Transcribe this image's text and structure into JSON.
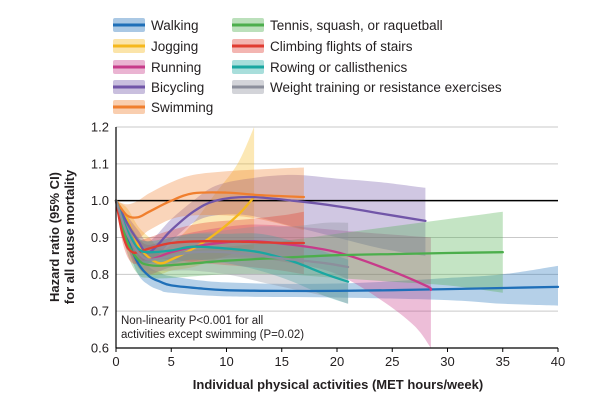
{
  "chart_data": {
    "type": "line",
    "xlabel": "Individual physical activities (MET hours/week)",
    "ylabel_lines": [
      "Hazard ratio (95% CI)",
      "for all cause mortality"
    ],
    "xlim": [
      0,
      40
    ],
    "ylim": [
      0.6,
      1.2
    ],
    "x_ticks": [
      0,
      5,
      10,
      15,
      20,
      25,
      30,
      35,
      40
    ],
    "y_ticks": [
      0.6,
      0.7,
      0.8,
      0.9,
      1.0,
      1.1,
      1.2
    ],
    "x_tick_labels": [
      "0",
      "5",
      "10",
      "15",
      "20",
      "25",
      "30",
      "35",
      "40"
    ],
    "y_tick_labels": [
      "0.6",
      "0.7",
      "0.8",
      "0.9",
      "1.0",
      "1.1",
      "1.2"
    ],
    "reference_line": 1.0,
    "grid": "horizontal",
    "legend_position": "top",
    "note_lines": [
      "Non-linearity P<0.001 for all",
      "activities except swimming (P=0.02)"
    ],
    "series": [
      {
        "name": "Walking",
        "color": "#1f6fb8",
        "points": [
          [
            0,
            1.0
          ],
          [
            1,
            0.9
          ],
          [
            2,
            0.83
          ],
          [
            3,
            0.795
          ],
          [
            4,
            0.78
          ],
          [
            5,
            0.77
          ],
          [
            7.5,
            0.762
          ],
          [
            10,
            0.757
          ],
          [
            15,
            0.755
          ],
          [
            20,
            0.755
          ],
          [
            25,
            0.757
          ],
          [
            30,
            0.76
          ],
          [
            35,
            0.763
          ],
          [
            40,
            0.766
          ]
        ],
        "ci_lower": [
          [
            0,
            1.0
          ],
          [
            1,
            0.88
          ],
          [
            2,
            0.8
          ],
          [
            3,
            0.77
          ],
          [
            4,
            0.757
          ],
          [
            5,
            0.75
          ],
          [
            10,
            0.74
          ],
          [
            20,
            0.737
          ],
          [
            30,
            0.73
          ],
          [
            35,
            0.72
          ],
          [
            40,
            0.715
          ]
        ],
        "ci_upper": [
          [
            0,
            1.0
          ],
          [
            1,
            0.92
          ],
          [
            2,
            0.86
          ],
          [
            3,
            0.82
          ],
          [
            4,
            0.805
          ],
          [
            5,
            0.795
          ],
          [
            10,
            0.778
          ],
          [
            20,
            0.775
          ],
          [
            30,
            0.79
          ],
          [
            35,
            0.8
          ],
          [
            40,
            0.823
          ]
        ]
      },
      {
        "name": "Jogging",
        "color": "#f5b81d",
        "points": [
          [
            0,
            1.0
          ],
          [
            1,
            0.95
          ],
          [
            2,
            0.88
          ],
          [
            3,
            0.845
          ],
          [
            4,
            0.83
          ],
          [
            5,
            0.84
          ],
          [
            7,
            0.87
          ],
          [
            9,
            0.91
          ],
          [
            11,
            0.96
          ],
          [
            12.5,
            1.01
          ]
        ],
        "ci_lower": [
          [
            0,
            1.0
          ],
          [
            1,
            0.9
          ],
          [
            2,
            0.82
          ],
          [
            3,
            0.8
          ],
          [
            4,
            0.8
          ],
          [
            5,
            0.81
          ],
          [
            7,
            0.82
          ],
          [
            9,
            0.84
          ],
          [
            11,
            0.86
          ],
          [
            12.5,
            0.87
          ]
        ],
        "ci_upper": [
          [
            0,
            1.0
          ],
          [
            1,
            0.98
          ],
          [
            2,
            0.93
          ],
          [
            3,
            0.9
          ],
          [
            4,
            0.87
          ],
          [
            5,
            0.88
          ],
          [
            7,
            0.94
          ],
          [
            9,
            1.02
          ],
          [
            11,
            1.1
          ],
          [
            12.5,
            1.2
          ]
        ]
      },
      {
        "name": "Running",
        "color": "#c73b8a",
        "points": [
          [
            0,
            1.0
          ],
          [
            1,
            0.92
          ],
          [
            2,
            0.86
          ],
          [
            3,
            0.84
          ],
          [
            5,
            0.86
          ],
          [
            8,
            0.88
          ],
          [
            12,
            0.89
          ],
          [
            16,
            0.88
          ],
          [
            20,
            0.86
          ],
          [
            24,
            0.82
          ],
          [
            28,
            0.77
          ],
          [
            28.5,
            0.758
          ]
        ],
        "ci_lower": [
          [
            0,
            1.0
          ],
          [
            1,
            0.88
          ],
          [
            2,
            0.82
          ],
          [
            3,
            0.8
          ],
          [
            5,
            0.82
          ],
          [
            8,
            0.84
          ],
          [
            12,
            0.845
          ],
          [
            16,
            0.83
          ],
          [
            20,
            0.8
          ],
          [
            24,
            0.73
          ],
          [
            27,
            0.66
          ],
          [
            28.5,
            0.6
          ]
        ],
        "ci_upper": [
          [
            0,
            1.0
          ],
          [
            1,
            0.95
          ],
          [
            2,
            0.9
          ],
          [
            3,
            0.88
          ],
          [
            5,
            0.9
          ],
          [
            8,
            0.92
          ],
          [
            12,
            0.935
          ],
          [
            16,
            0.93
          ],
          [
            20,
            0.92
          ],
          [
            24,
            0.91
          ],
          [
            28.5,
            0.9
          ]
        ]
      },
      {
        "name": "Bicycling",
        "color": "#7156a8",
        "points": [
          [
            0,
            1.0
          ],
          [
            1,
            0.94
          ],
          [
            2,
            0.89
          ],
          [
            3,
            0.86
          ],
          [
            5,
            0.92
          ],
          [
            7,
            0.97
          ],
          [
            9,
            1.0
          ],
          [
            12,
            1.01
          ],
          [
            16,
            1.0
          ],
          [
            20,
            0.985
          ],
          [
            24,
            0.965
          ],
          [
            28,
            0.945
          ]
        ],
        "ci_lower": [
          [
            0,
            1.0
          ],
          [
            1,
            0.92
          ],
          [
            2,
            0.86
          ],
          [
            3,
            0.83
          ],
          [
            5,
            0.89
          ],
          [
            7,
            0.94
          ],
          [
            9,
            0.96
          ],
          [
            12,
            0.96
          ],
          [
            16,
            0.93
          ],
          [
            20,
            0.9
          ],
          [
            24,
            0.87
          ],
          [
            28,
            0.85
          ]
        ],
        "ci_upper": [
          [
            0,
            1.0
          ],
          [
            1,
            0.96
          ],
          [
            2,
            0.92
          ],
          [
            3,
            0.89
          ],
          [
            5,
            0.95
          ],
          [
            7,
            1.0
          ],
          [
            9,
            1.04
          ],
          [
            12,
            1.06
          ],
          [
            16,
            1.07
          ],
          [
            20,
            1.06
          ],
          [
            24,
            1.05
          ],
          [
            28,
            1.035
          ]
        ]
      },
      {
        "name": "Swimming",
        "color": "#f07f2e",
        "points": [
          [
            0,
            1.0
          ],
          [
            1,
            0.96
          ],
          [
            2,
            0.955
          ],
          [
            3,
            0.97
          ],
          [
            5,
            1.0
          ],
          [
            7,
            1.02
          ],
          [
            10,
            1.022
          ],
          [
            13,
            1.015
          ],
          [
            17,
            1.01
          ]
        ],
        "ci_lower": [
          [
            0,
            1.0
          ],
          [
            1,
            0.93
          ],
          [
            2,
            0.9
          ],
          [
            3,
            0.92
          ],
          [
            5,
            0.95
          ],
          [
            7,
            0.96
          ],
          [
            10,
            0.96
          ],
          [
            13,
            0.95
          ],
          [
            17,
            0.92
          ]
        ],
        "ci_upper": [
          [
            0,
            1.0
          ],
          [
            1,
            0.99
          ],
          [
            2,
            1.0
          ],
          [
            3,
            1.02
          ],
          [
            5,
            1.05
          ],
          [
            7,
            1.07
          ],
          [
            10,
            1.08
          ],
          [
            13,
            1.085
          ],
          [
            17,
            1.09
          ]
        ]
      },
      {
        "name": "Tennis, squash, or raquetball",
        "color": "#4cae4c",
        "points": [
          [
            0,
            1.0
          ],
          [
            1,
            0.89
          ],
          [
            2,
            0.84
          ],
          [
            3,
            0.825
          ],
          [
            5,
            0.825
          ],
          [
            10,
            0.837
          ],
          [
            15,
            0.845
          ],
          [
            20,
            0.852
          ],
          [
            25,
            0.855
          ],
          [
            30,
            0.858
          ],
          [
            35,
            0.86
          ]
        ],
        "ci_lower": [
          [
            0,
            1.0
          ],
          [
            1,
            0.86
          ],
          [
            2,
            0.8
          ],
          [
            3,
            0.79
          ],
          [
            5,
            0.79
          ],
          [
            10,
            0.8
          ],
          [
            15,
            0.8
          ],
          [
            20,
            0.79
          ],
          [
            25,
            0.78
          ],
          [
            30,
            0.77
          ],
          [
            35,
            0.75
          ]
        ],
        "ci_upper": [
          [
            0,
            1.0
          ],
          [
            1,
            0.93
          ],
          [
            2,
            0.88
          ],
          [
            3,
            0.86
          ],
          [
            5,
            0.86
          ],
          [
            10,
            0.875
          ],
          [
            15,
            0.89
          ],
          [
            20,
            0.91
          ],
          [
            25,
            0.93
          ],
          [
            30,
            0.95
          ],
          [
            35,
            0.97
          ]
        ]
      },
      {
        "name": "Climbing flights of stairs",
        "color": "#e03c31",
        "points": [
          [
            0,
            1.0
          ],
          [
            0.5,
            0.92
          ],
          [
            1,
            0.875
          ],
          [
            1.5,
            0.86
          ],
          [
            2,
            0.86
          ],
          [
            3,
            0.87
          ],
          [
            5,
            0.885
          ],
          [
            8,
            0.89
          ],
          [
            12,
            0.888
          ],
          [
            15,
            0.885
          ],
          [
            17,
            0.885
          ]
        ],
        "ci_lower": [
          [
            0,
            1.0
          ],
          [
            0.5,
            0.9
          ],
          [
            1,
            0.85
          ],
          [
            1.5,
            0.83
          ],
          [
            2,
            0.83
          ],
          [
            3,
            0.84
          ],
          [
            5,
            0.84
          ],
          [
            8,
            0.83
          ],
          [
            12,
            0.82
          ],
          [
            15,
            0.81
          ],
          [
            17,
            0.8
          ]
        ],
        "ci_upper": [
          [
            0,
            1.0
          ],
          [
            0.5,
            0.94
          ],
          [
            1,
            0.9
          ],
          [
            1.5,
            0.89
          ],
          [
            2,
            0.89
          ],
          [
            3,
            0.9
          ],
          [
            5,
            0.92
          ],
          [
            8,
            0.94
          ],
          [
            12,
            0.95
          ],
          [
            15,
            0.96
          ],
          [
            17,
            0.97
          ]
        ]
      },
      {
        "name": "Rowing or callisthenics",
        "color": "#1aa7a1",
        "points": [
          [
            0,
            1.0
          ],
          [
            1,
            0.92
          ],
          [
            2,
            0.87
          ],
          [
            3,
            0.86
          ],
          [
            5,
            0.865
          ],
          [
            7,
            0.875
          ],
          [
            10,
            0.87
          ],
          [
            13,
            0.86
          ],
          [
            16,
            0.835
          ],
          [
            19,
            0.8
          ],
          [
            21,
            0.78
          ]
        ],
        "ci_lower": [
          [
            0,
            1.0
          ],
          [
            1,
            0.89
          ],
          [
            2,
            0.84
          ],
          [
            3,
            0.83
          ],
          [
            5,
            0.83
          ],
          [
            7,
            0.84
          ],
          [
            10,
            0.83
          ],
          [
            13,
            0.81
          ],
          [
            16,
            0.78
          ],
          [
            19,
            0.74
          ],
          [
            21,
            0.72
          ]
        ],
        "ci_upper": [
          [
            0,
            1.0
          ],
          [
            1,
            0.95
          ],
          [
            2,
            0.9
          ],
          [
            3,
            0.89
          ],
          [
            5,
            0.9
          ],
          [
            7,
            0.91
          ],
          [
            10,
            0.91
          ],
          [
            13,
            0.91
          ],
          [
            16,
            0.89
          ],
          [
            19,
            0.86
          ],
          [
            21,
            0.84
          ]
        ]
      },
      {
        "name": "Weight training or resistance exercises",
        "color": "#8c8f9c",
        "points": [
          [
            0,
            1.0
          ],
          [
            1,
            0.91
          ],
          [
            2,
            0.86
          ],
          [
            3,
            0.84
          ],
          [
            5,
            0.85
          ],
          [
            7,
            0.86
          ],
          [
            10,
            0.86
          ],
          [
            13,
            0.85
          ],
          [
            16,
            0.84
          ],
          [
            19,
            0.83
          ],
          [
            21,
            0.82
          ]
        ],
        "ci_lower": [
          [
            0,
            1.0
          ],
          [
            1,
            0.88
          ],
          [
            2,
            0.83
          ],
          [
            3,
            0.81
          ],
          [
            5,
            0.81
          ],
          [
            7,
            0.81
          ],
          [
            10,
            0.8
          ],
          [
            13,
            0.78
          ],
          [
            16,
            0.76
          ],
          [
            19,
            0.74
          ],
          [
            21,
            0.72
          ]
        ],
        "ci_upper": [
          [
            0,
            1.0
          ],
          [
            1,
            0.94
          ],
          [
            2,
            0.89
          ],
          [
            3,
            0.87
          ],
          [
            5,
            0.89
          ],
          [
            7,
            0.91
          ],
          [
            10,
            0.92
          ],
          [
            13,
            0.93
          ],
          [
            16,
            0.93
          ],
          [
            19,
            0.94
          ],
          [
            21,
            0.94
          ]
        ]
      }
    ]
  }
}
